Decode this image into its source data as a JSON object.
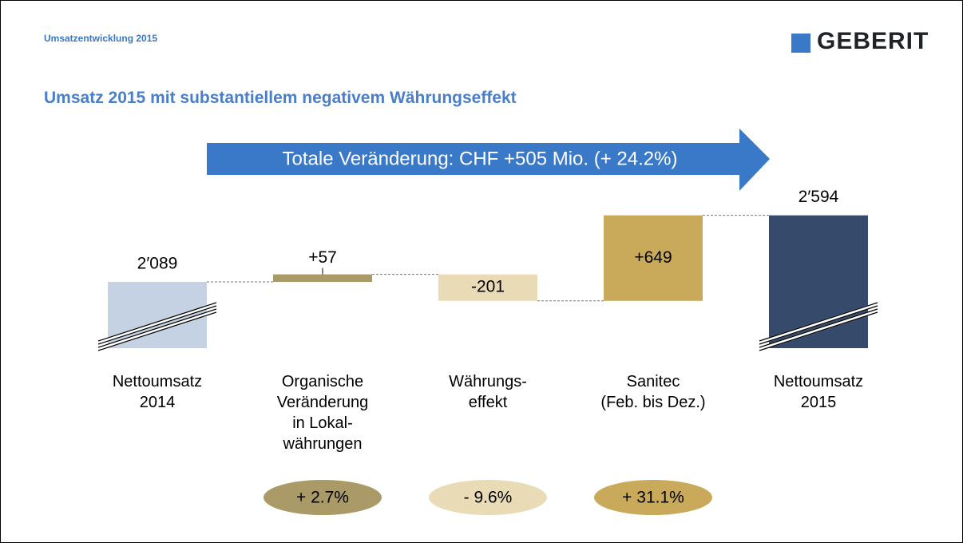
{
  "header": {
    "section": "Umsatzentwicklung 2015",
    "logo": "GEBERIT"
  },
  "chart_data": {
    "type": "waterfall",
    "title": "Umsatz 2015 mit substantiellem negativem Währungseffekt",
    "annotation": "Totale Veränderung: CHF +505 Mio. (+ 24.2%)",
    "categories": [
      "Nettoumsatz\n2014",
      "Organische\nVeränderung\nin Lokal-\nwährungen",
      "Währungs-\neffekt",
      "Sanitec\n(Feb. bis Dez.)",
      "Nettoumsatz\n2015"
    ],
    "measure": [
      "total",
      "relative",
      "relative",
      "relative",
      "total"
    ],
    "values": [
      2089,
      57,
      -201,
      649,
      2594
    ],
    "value_labels": [
      "2′089",
      "+57",
      "-201",
      "+649",
      "2′594"
    ],
    "colors": [
      "#c5d2e3",
      "#a99a67",
      "#e8dbb5",
      "#c9a95a",
      "#364a6b"
    ],
    "badges": [
      "+ 2.7%",
      "- 9.6%",
      "+ 31.1%"
    ],
    "badge_colors": [
      "#a99a67",
      "#e8dbb5",
      "#c9a95a"
    ]
  }
}
